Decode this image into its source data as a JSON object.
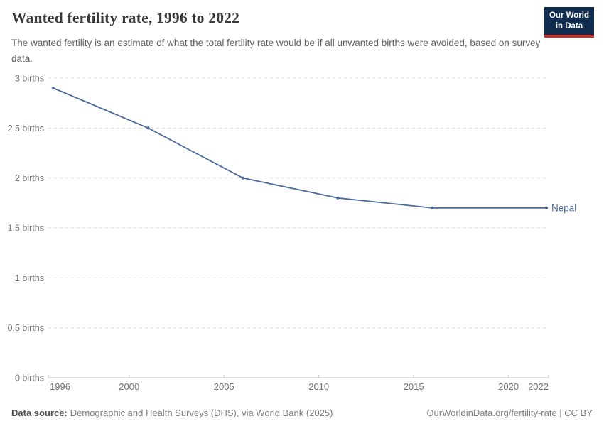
{
  "header": {
    "title": "Wanted fertility rate, 1996 to 2022",
    "subtitle": "The wanted fertility is an estimate of what the total fertility rate would be if all unwanted births were avoided, based on survey data.",
    "logo": {
      "line1": "Our World",
      "line2": "in Data"
    }
  },
  "chart_data": {
    "type": "line",
    "title": "Wanted fertility rate, 1996 to 2022",
    "xlabel": "",
    "ylabel": "",
    "xlim": [
      1996,
      2022
    ],
    "ylim": [
      0,
      3
    ],
    "grid": "horizontal-dashed",
    "legend": "end-of-line-label",
    "x_ticks": [
      {
        "value": 1996,
        "label": "1996"
      },
      {
        "value": 2000,
        "label": "2000"
      },
      {
        "value": 2005,
        "label": "2005"
      },
      {
        "value": 2010,
        "label": "2010"
      },
      {
        "value": 2015,
        "label": "2015"
      },
      {
        "value": 2020,
        "label": "2020"
      },
      {
        "value": 2022,
        "label": "2022"
      }
    ],
    "y_ticks": [
      {
        "value": 0,
        "label": "0 births"
      },
      {
        "value": 0.5,
        "label": "0.5 births"
      },
      {
        "value": 1,
        "label": "1 births"
      },
      {
        "value": 1.5,
        "label": "1.5 births"
      },
      {
        "value": 2,
        "label": "2 births"
      },
      {
        "value": 2.5,
        "label": "2.5 births"
      },
      {
        "value": 3,
        "label": "3 births"
      }
    ],
    "series": [
      {
        "name": "Nepal",
        "color": "#4C6A9C",
        "points": [
          {
            "x": 1996,
            "y": 2.9
          },
          {
            "x": 2001,
            "y": 2.5
          },
          {
            "x": 2006,
            "y": 2.0
          },
          {
            "x": 2011,
            "y": 1.8
          },
          {
            "x": 2016,
            "y": 1.7
          },
          {
            "x": 2022,
            "y": 1.7
          }
        ]
      }
    ]
  },
  "footer": {
    "source_label": "Data source:",
    "source_text": "Demographic and Health Surveys (DHS), via World Bank (2025)",
    "citation": "OurWorldinData.org/fertility-rate | CC BY"
  },
  "colors": {
    "series": "#4C6A9C",
    "gridline": "#dcdcdc",
    "axis": "#c2c2c2",
    "tick_label": "#737373",
    "logo_navy": "#102d50",
    "logo_red": "#c4332d"
  }
}
